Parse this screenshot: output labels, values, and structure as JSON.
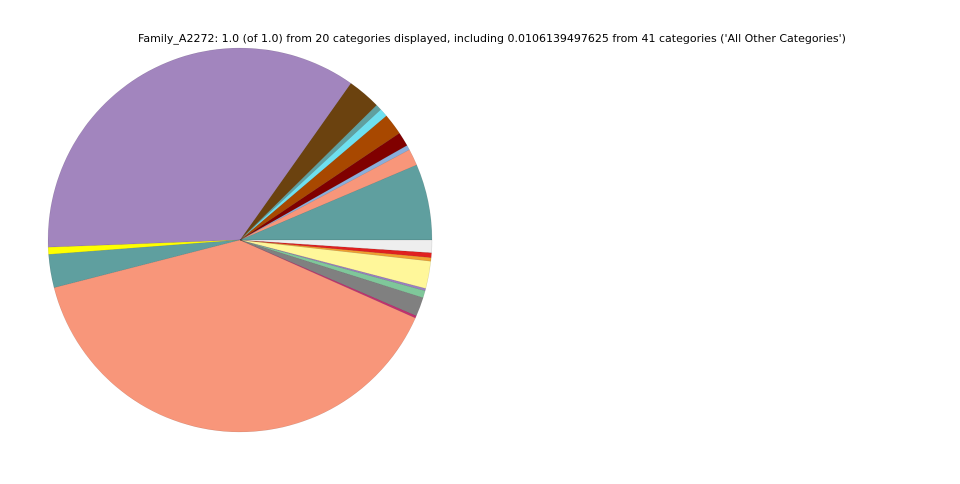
{
  "chart_data": {
    "type": "pie",
    "title": "Family_A2272: 1.0 (of 1.0) from 20 categories displayed, including 0.0106139497625 from 41 categories ('All Other Categories')",
    "start_angle": 0,
    "direction": "counterclockwise",
    "values": [
      0.064,
      0.014,
      0.004,
      0.012,
      0.018,
      0.007,
      0.005,
      0.028,
      0.354,
      0.006,
      0.028,
      0.3934,
      0.002,
      0.016,
      0.006,
      0.002,
      0.023,
      0.003,
      0.004,
      0.0106
    ],
    "colors": [
      "#5f9f9f",
      "#f8967a",
      "#8aaedb",
      "#800000",
      "#a84800",
      "#6ee0f0",
      "#5fa0a0",
      "#6b420f",
      "#a285be",
      "#ffff00",
      "#5f9f9f",
      "#f8967a",
      "#c03070",
      "#808080",
      "#7fc79a",
      "#9b7fc0",
      "#fff79a",
      "#f0a030",
      "#e02020",
      "#eeeeee"
    ]
  }
}
